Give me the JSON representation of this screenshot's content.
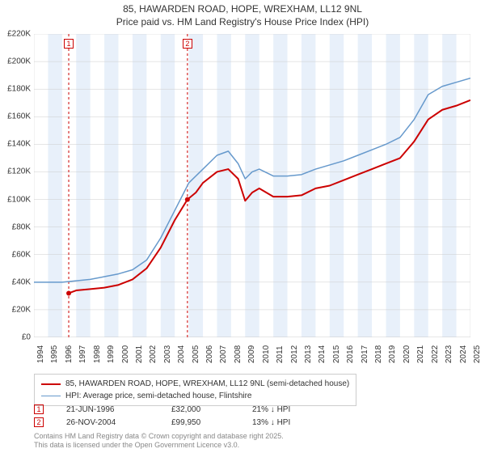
{
  "title_line1": "85, HAWARDEN ROAD, HOPE, WREXHAM, LL12 9NL",
  "title_line2": "Price paid vs. HM Land Registry's House Price Index (HPI)",
  "chart": {
    "type": "line",
    "background_color": "#ffffff",
    "grid_color": "#cccccc",
    "band_color": "#e8f0fa",
    "x_min_year": 1994,
    "x_max_year": 2025,
    "x_years": [
      1994,
      1995,
      1996,
      1997,
      1998,
      1999,
      2000,
      2001,
      2002,
      2003,
      2004,
      2005,
      2006,
      2007,
      2008,
      2009,
      2010,
      2011,
      2012,
      2013,
      2014,
      2015,
      2016,
      2017,
      2018,
      2019,
      2020,
      2021,
      2022,
      2023,
      2024,
      2025
    ],
    "y_min": 0,
    "y_max": 220000,
    "y_tick_step": 20000,
    "y_tick_labels": [
      "£0",
      "£20K",
      "£40K",
      "£60K",
      "£80K",
      "£100K",
      "£120K",
      "£140K",
      "£160K",
      "£180K",
      "£200K",
      "£220K"
    ],
    "label_fontsize": 10,
    "title_fontsize": 12,
    "series": [
      {
        "name": "price_paid",
        "label": "85, HAWARDEN ROAD, HOPE, WREXHAM, LL12 9NL (semi-detached house)",
        "color": "#cc0000",
        "line_width": 2,
        "points": [
          [
            1996.47,
            32000
          ],
          [
            1997,
            34000
          ],
          [
            1998,
            35000
          ],
          [
            1999,
            36000
          ],
          [
            2000,
            38000
          ],
          [
            2001,
            42000
          ],
          [
            2002,
            50000
          ],
          [
            2003,
            65000
          ],
          [
            2004,
            85000
          ],
          [
            2004.9,
            99950
          ],
          [
            2005.5,
            105000
          ],
          [
            2006,
            112000
          ],
          [
            2007,
            120000
          ],
          [
            2007.8,
            122000
          ],
          [
            2008.5,
            115000
          ],
          [
            2009,
            99000
          ],
          [
            2009.5,
            105000
          ],
          [
            2010,
            108000
          ],
          [
            2011,
            102000
          ],
          [
            2012,
            102000
          ],
          [
            2013,
            103000
          ],
          [
            2014,
            108000
          ],
          [
            2015,
            110000
          ],
          [
            2016,
            114000
          ],
          [
            2017,
            118000
          ],
          [
            2018,
            122000
          ],
          [
            2019,
            126000
          ],
          [
            2020,
            130000
          ],
          [
            2021,
            142000
          ],
          [
            2022,
            158000
          ],
          [
            2023,
            165000
          ],
          [
            2024,
            168000
          ],
          [
            2025,
            172000
          ]
        ],
        "sale_points": [
          {
            "x": 1996.47,
            "y": 32000
          },
          {
            "x": 2004.9,
            "y": 99950
          }
        ]
      },
      {
        "name": "hpi",
        "label": "HPI: Average price, semi-detached house, Flintshire",
        "color": "#6699cc",
        "line_width": 1.5,
        "points": [
          [
            1994,
            40000
          ],
          [
            1995,
            40000
          ],
          [
            1996,
            40000
          ],
          [
            1997,
            41000
          ],
          [
            1998,
            42000
          ],
          [
            1999,
            44000
          ],
          [
            2000,
            46000
          ],
          [
            2001,
            49000
          ],
          [
            2002,
            56000
          ],
          [
            2003,
            72000
          ],
          [
            2004,
            92000
          ],
          [
            2005,
            112000
          ],
          [
            2006,
            122000
          ],
          [
            2007,
            132000
          ],
          [
            2007.8,
            135000
          ],
          [
            2008.5,
            126000
          ],
          [
            2009,
            115000
          ],
          [
            2009.5,
            120000
          ],
          [
            2010,
            122000
          ],
          [
            2011,
            117000
          ],
          [
            2012,
            117000
          ],
          [
            2013,
            118000
          ],
          [
            2014,
            122000
          ],
          [
            2015,
            125000
          ],
          [
            2016,
            128000
          ],
          [
            2017,
            132000
          ],
          [
            2018,
            136000
          ],
          [
            2019,
            140000
          ],
          [
            2020,
            145000
          ],
          [
            2021,
            158000
          ],
          [
            2022,
            176000
          ],
          [
            2023,
            182000
          ],
          [
            2024,
            185000
          ],
          [
            2025,
            188000
          ]
        ]
      }
    ],
    "markers": [
      {
        "num": "1",
        "x_year": 1996.47,
        "date": "21-JUN-1996",
        "price": "£32,000",
        "diff": "21% ↓ HPI"
      },
      {
        "num": "2",
        "x_year": 2004.9,
        "date": "26-NOV-2004",
        "price": "£99,950",
        "diff": "13% ↓ HPI"
      }
    ]
  },
  "footer_line1": "Contains HM Land Registry data © Crown copyright and database right 2025.",
  "footer_line2": "This data is licensed under the Open Government Licence v3.0."
}
